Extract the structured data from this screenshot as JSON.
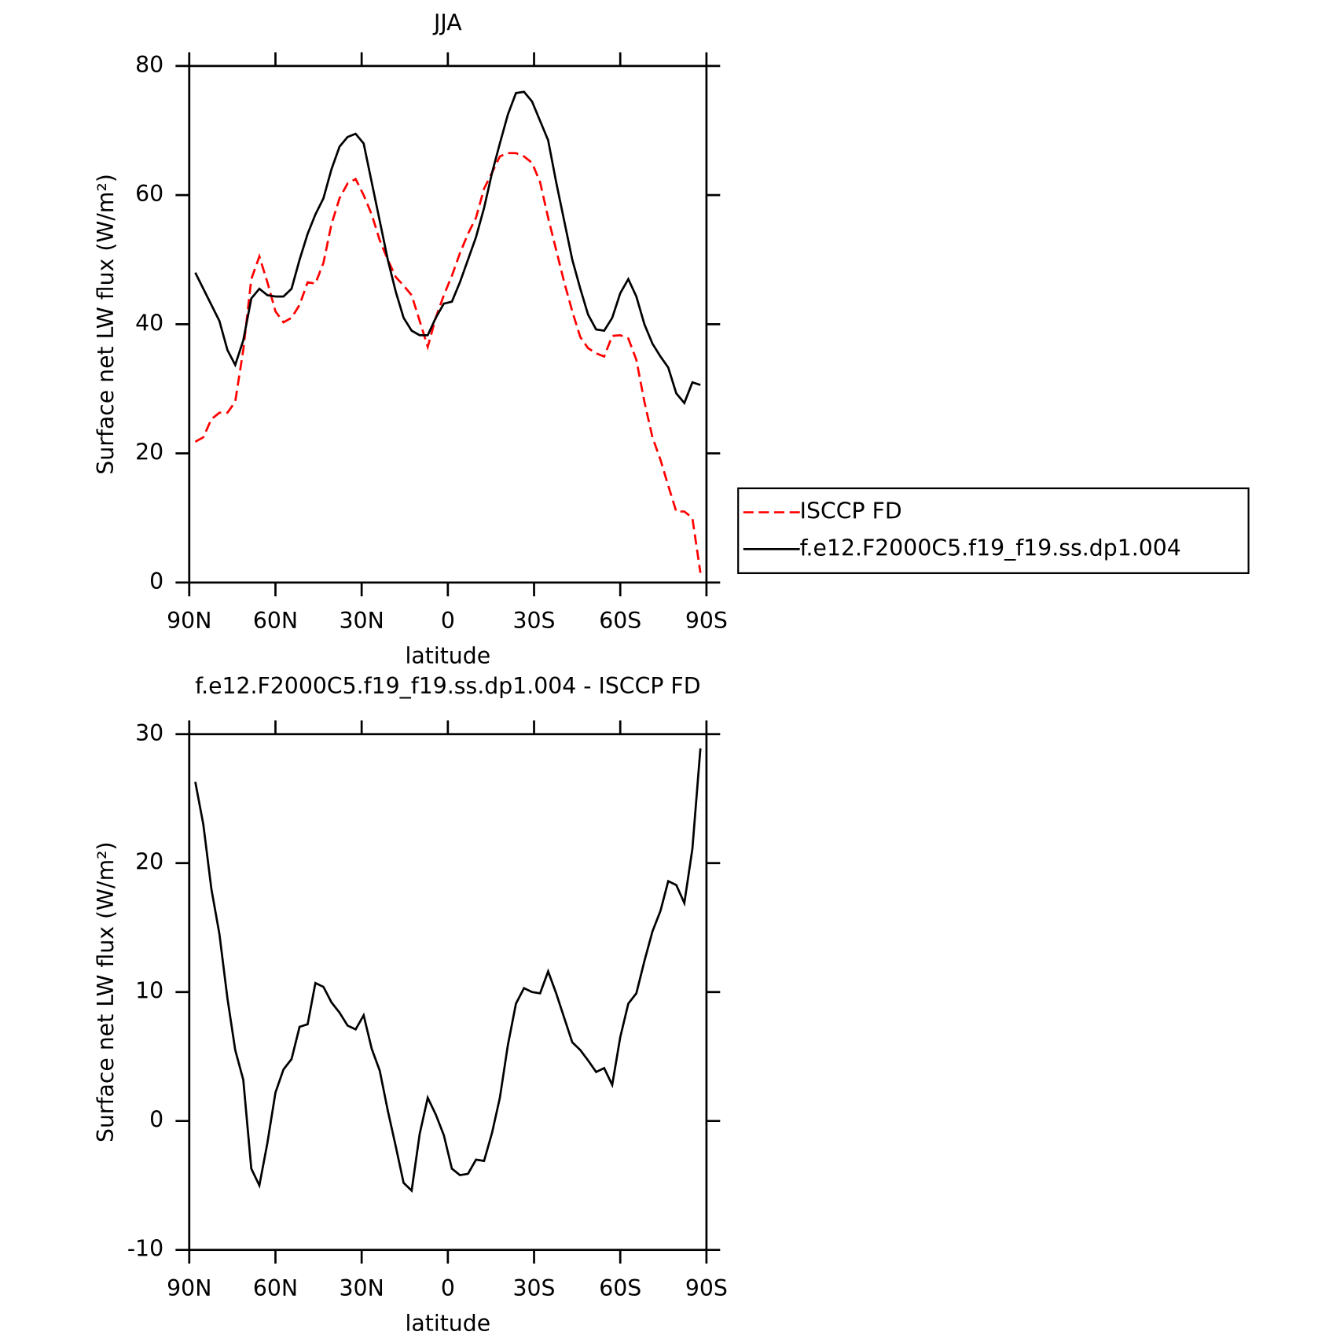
{
  "chart_data": [
    {
      "type": "line",
      "title": "JJA",
      "x_label": "latitude",
      "y_label": "Surface net LW flux (W/m²)",
      "x": [
        87.9,
        85.1,
        82.3,
        79.5,
        76.7,
        74.0,
        71.2,
        68.4,
        65.6,
        62.8,
        60.0,
        57.2,
        54.4,
        51.6,
        48.8,
        46.1,
        43.3,
        40.5,
        37.7,
        34.9,
        32.1,
        29.3,
        26.5,
        23.7,
        20.9,
        18.1,
        15.4,
        12.6,
        9.8,
        7.0,
        4.2,
        1.4,
        -1.4,
        -4.2,
        -7.0,
        -9.8,
        -12.6,
        -15.4,
        -18.1,
        -20.9,
        -23.7,
        -26.5,
        -29.3,
        -32.1,
        -34.9,
        -37.7,
        -40.5,
        -43.3,
        -46.1,
        -48.8,
        -51.6,
        -54.4,
        -57.2,
        -60.0,
        -62.8,
        -65.6,
        -68.4,
        -71.2,
        -74.0,
        -76.7,
        -79.5,
        -82.3,
        -85.1,
        -87.9
      ],
      "series": [
        {
          "name": "ISCCP FD",
          "color": "#ff0000",
          "style": "dashed",
          "values": [
            21.8,
            22.5,
            25.3,
            26.3,
            26.3,
            28,
            36,
            47,
            50.5,
            46.5,
            42,
            40.3,
            41,
            43,
            46.5,
            46.3,
            49.5,
            55.5,
            59.5,
            61.8,
            62.5,
            60,
            57,
            53,
            50,
            47.3,
            46,
            44.5,
            40.5,
            36.5,
            41,
            44.5,
            47.5,
            51,
            54,
            56.5,
            61,
            63.5,
            66,
            66.5,
            66.5,
            66,
            65,
            62,
            56.5,
            51.5,
            46.5,
            42,
            38,
            36.3,
            35.5,
            35,
            38.2,
            38.3,
            37.8,
            34.5,
            28,
            22.5,
            19,
            15,
            11,
            11,
            10,
            1.5
          ]
        },
        {
          "name": "f.e12.F2000C5.f19_f19.ss.dp1.004",
          "color": "#000000",
          "style": "solid",
          "values": [
            48,
            45.5,
            43,
            40.5,
            36,
            33.7,
            37.5,
            44,
            45.5,
            44.5,
            44.3,
            44.3,
            45.5,
            50,
            54,
            57,
            59.5,
            64,
            67.5,
            69,
            69.5,
            68,
            62,
            56,
            50,
            45,
            41,
            39,
            38.3,
            38.3,
            41,
            43.2,
            43.5,
            46.5,
            50,
            53.5,
            58,
            63.5,
            68,
            72.5,
            75.8,
            76,
            74.5,
            71.5,
            68.5,
            62,
            56,
            50,
            45.5,
            41.5,
            39.2,
            39,
            41,
            44.8,
            47,
            44.3,
            40,
            37,
            35,
            33.3,
            29.3,
            27.8,
            31,
            30.6
          ]
        }
      ],
      "xlim": [
        90,
        -90
      ],
      "xticks": [
        {
          "value": 90,
          "label": "90N"
        },
        {
          "value": 60,
          "label": "60N"
        },
        {
          "value": 30,
          "label": "30N"
        },
        0,
        {
          "value": -30,
          "label": "30S"
        },
        {
          "value": -60,
          "label": "60S"
        },
        {
          "value": -90,
          "label": "90S"
        }
      ],
      "ylim": [
        0,
        80
      ],
      "yticks": [
        0,
        20,
        40,
        60,
        80
      ],
      "legend": "right"
    },
    {
      "type": "line",
      "title": "f.e12.F2000C5.f19_f19.ss.dp1.004 - ISCCP FD",
      "x_label": "latitude",
      "y_label": "Surface net LW flux (W/m²)",
      "x": [
        87.9,
        85.1,
        82.3,
        79.5,
        76.7,
        74.0,
        71.2,
        68.4,
        65.6,
        62.8,
        60.0,
        57.2,
        54.4,
        51.6,
        48.8,
        46.1,
        43.3,
        40.5,
        37.7,
        34.9,
        32.1,
        29.3,
        26.5,
        23.7,
        20.9,
        18.1,
        15.4,
        12.6,
        9.8,
        7.0,
        4.2,
        1.4,
        -1.4,
        -4.2,
        -7.0,
        -9.8,
        -12.6,
        -15.4,
        -18.1,
        -20.9,
        -23.7,
        -26.5,
        -29.3,
        -32.1,
        -34.9,
        -37.7,
        -40.5,
        -43.3,
        -46.1,
        -48.8,
        -51.6,
        -54.4,
        -57.2,
        -60.0,
        -62.8,
        -65.6,
        -68.4,
        -71.2,
        -74.0,
        -76.7,
        -79.5,
        -82.3,
        -85.1,
        -87.9
      ],
      "series": [
        {
          "color": "#000000",
          "style": "solid",
          "values": [
            26.3,
            23,
            18,
            14.5,
            9.5,
            5.5,
            3.2,
            -3.7,
            -5,
            -1.7,
            2.2,
            4,
            4.8,
            7.3,
            7.5,
            10.7,
            10.4,
            9.2,
            8.4,
            7.4,
            7.1,
            8.2,
            5.6,
            3.9,
            0.8,
            -2,
            -4.8,
            -5.4,
            -1,
            1.8,
            0.5,
            -1.1,
            -3.7,
            -4.2,
            -4.1,
            -3,
            -3.1,
            -0.9,
            1.8,
            5.9,
            9.1,
            10.3,
            10,
            9.9,
            11.6,
            9.9,
            8,
            6.1,
            5.5,
            4.7,
            3.8,
            4.1,
            2.8,
            6.5,
            9.1,
            9.9,
            12.4,
            14.7,
            16.3,
            18.6,
            18.3,
            16.9,
            21.1,
            28.9
          ]
        }
      ],
      "xlim": [
        90,
        -90
      ],
      "xticks": [
        {
          "value": 90,
          "label": "90N"
        },
        {
          "value": 60,
          "label": "60N"
        },
        {
          "value": 30,
          "label": "30N"
        },
        0,
        {
          "value": -30,
          "label": "30S"
        },
        {
          "value": -60,
          "label": "60S"
        },
        {
          "value": -90,
          "label": "90S"
        }
      ],
      "ylim": [
        -10,
        30
      ],
      "yticks": [
        -10,
        0,
        10,
        20,
        30
      ]
    }
  ]
}
